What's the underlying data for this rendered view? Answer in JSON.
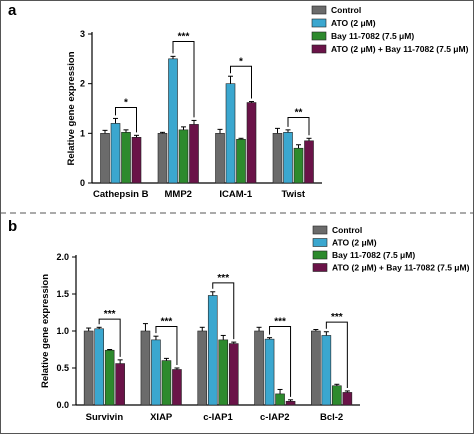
{
  "colors": {
    "control": "#6b6b6b",
    "ato": "#3ba7cf",
    "bay": "#2d8a2d",
    "combo": "#6a1348"
  },
  "chart_data": [
    {
      "type": "bar",
      "panel_label": "a",
      "ylabel": "Relative gene expression",
      "ylim": [
        0,
        3
      ],
      "yticks": [
        "0",
        "1",
        "2",
        "3"
      ],
      "categories": [
        "Cathepsin B",
        "MMP2",
        "ICAM-1",
        "Twist"
      ],
      "legend_position": "top-right",
      "series": [
        {
          "name": "Control",
          "values": [
            1.0,
            1.0,
            1.0,
            1.0
          ],
          "errors": [
            0.06,
            0.02,
            0.08,
            0.1
          ]
        },
        {
          "name": "ATO (2 μM)",
          "values": [
            1.2,
            2.5,
            2.0,
            1.02
          ],
          "errors": [
            0.1,
            0.05,
            0.15,
            0.05
          ]
        },
        {
          "name": "Bay 11-7082 (7.5 μM)",
          "values": [
            1.02,
            1.07,
            0.88,
            0.7
          ],
          "errors": [
            0.05,
            0.06,
            0.02,
            0.07
          ]
        },
        {
          "name": "ATO (2 μM) + Bay 11-7082 (7.5 μM)",
          "values": [
            0.92,
            1.18,
            1.62,
            0.85
          ],
          "errors": [
            0.04,
            0.08,
            0.02,
            0.05
          ]
        }
      ],
      "significance": [
        {
          "category": 0,
          "from": 1,
          "to": 3,
          "label": "*",
          "y": 1.52
        },
        {
          "category": 1,
          "from": 1,
          "to": 3,
          "label": "***",
          "y": 2.85
        },
        {
          "category": 2,
          "from": 1,
          "to": 3,
          "label": "*",
          "y": 2.35
        },
        {
          "category": 3,
          "from": 1,
          "to": 3,
          "label": "**",
          "y": 1.32
        }
      ]
    },
    {
      "type": "bar",
      "panel_label": "b",
      "ylabel": "Relative gene expression",
      "ylim": [
        0,
        2
      ],
      "yticks": [
        "0.0",
        "0.5",
        "1.0",
        "1.5",
        "2.0"
      ],
      "categories": [
        "Survivin",
        "XIAP",
        "c-IAP1",
        "c-IAP2",
        "Bcl-2"
      ],
      "legend_position": "top-right",
      "series": [
        {
          "name": "Control",
          "values": [
            1.0,
            1.0,
            1.0,
            1.0,
            1.0
          ],
          "errors": [
            0.04,
            0.1,
            0.05,
            0.05,
            0.02
          ]
        },
        {
          "name": "ATO (2 μM)",
          "values": [
            1.03,
            0.88,
            1.48,
            0.89,
            0.94
          ],
          "errors": [
            0.02,
            0.05,
            0.05,
            0.02,
            0.05
          ]
        },
        {
          "name": "Bay 11-7082 (7.5 μM)",
          "values": [
            0.74,
            0.6,
            0.88,
            0.15,
            0.26
          ],
          "errors": [
            0.01,
            0.03,
            0.06,
            0.06,
            0.02
          ]
        },
        {
          "name": "ATO (2 μM) + Bay 11-7082 (7.5 μM)",
          "values": [
            0.56,
            0.48,
            0.83,
            0.05,
            0.17
          ],
          "errors": [
            0.05,
            0.02,
            0.02,
            0.02,
            0.02
          ]
        }
      ],
      "significance": [
        {
          "category": 0,
          "from": 1,
          "to": 3,
          "label": "***",
          "y": 1.16
        },
        {
          "category": 1,
          "from": 1,
          "to": 3,
          "label": "***",
          "y": 1.06
        },
        {
          "category": 2,
          "from": 1,
          "to": 3,
          "label": "***",
          "y": 1.65
        },
        {
          "category": 3,
          "from": 1,
          "to": 3,
          "label": "***",
          "y": 1.06
        },
        {
          "category": 4,
          "from": 1,
          "to": 3,
          "label": "***",
          "y": 1.12
        }
      ]
    }
  ]
}
